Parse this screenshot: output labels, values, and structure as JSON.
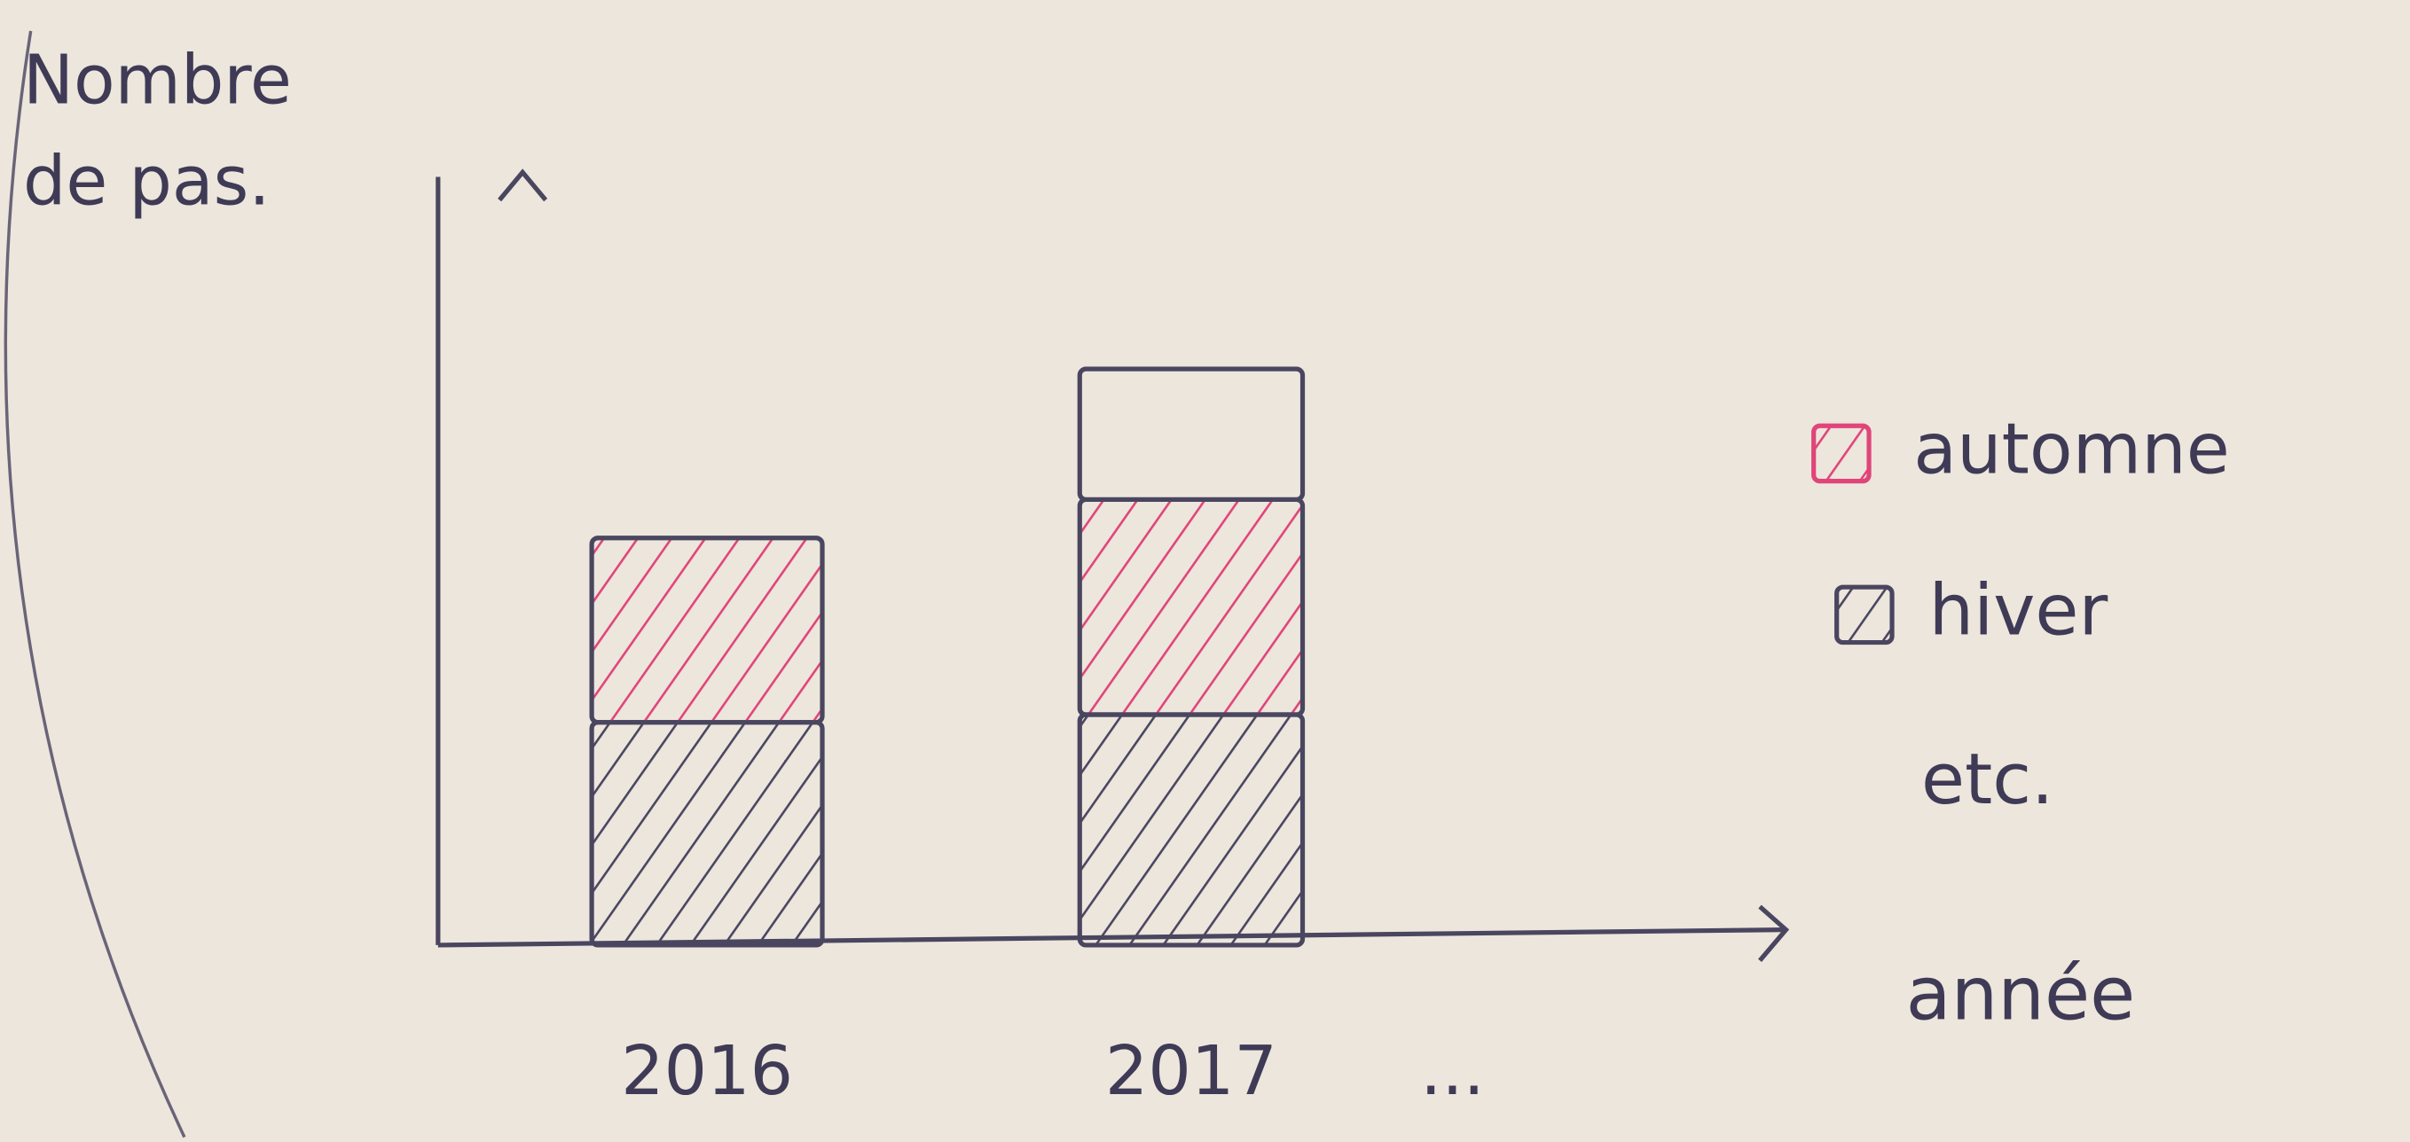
{
  "chart_data": {
    "type": "stacked_bar",
    "y_label": "Nombre de pas.",
    "x_label": "année",
    "categories": [
      "2016",
      "2017",
      "..."
    ],
    "series": [
      {
        "name": "automne",
        "color": "#e0457a",
        "hatch": true,
        "values": [
          120,
          140,
          null
        ]
      },
      {
        "name": "hiver",
        "color": "#4a4660",
        "hatch": true,
        "values": [
          145,
          150,
          null
        ]
      },
      {
        "name": "etc.",
        "color": "#4a4660",
        "hatch": false,
        "values": [
          null,
          85,
          null
        ]
      }
    ],
    "ylim": [
      0,
      500
    ]
  }
}
